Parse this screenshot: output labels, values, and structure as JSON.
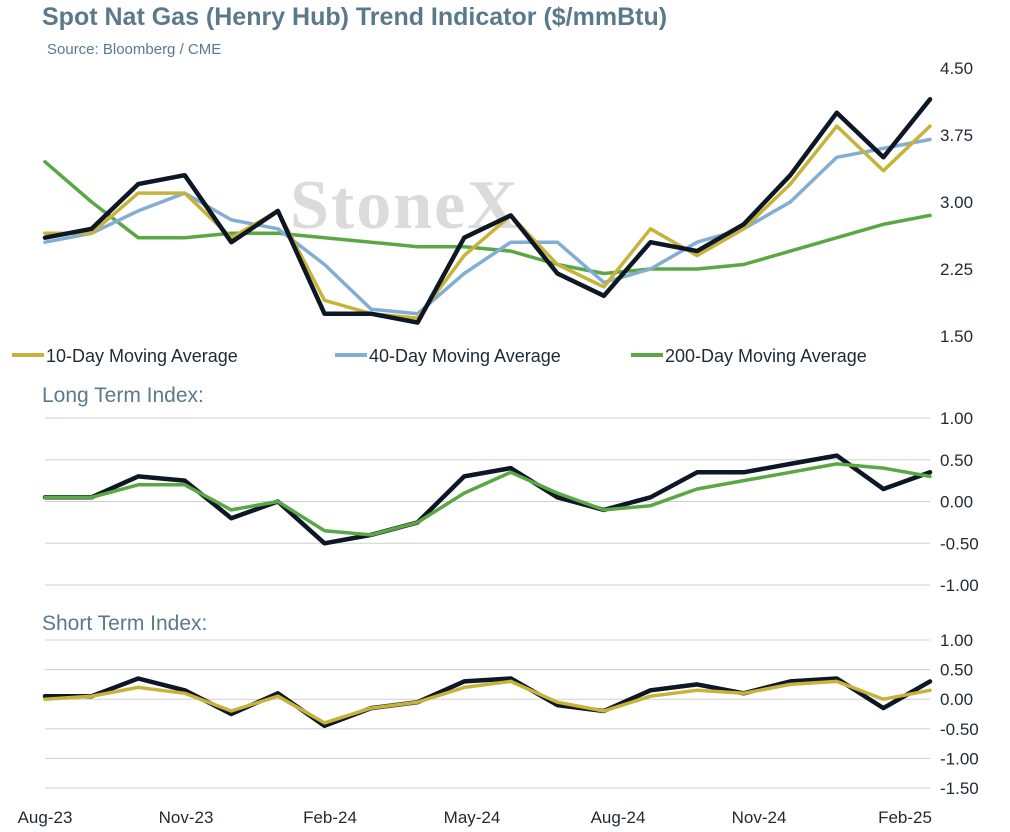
{
  "title": "Spot Nat Gas (Henry Hub) Trend Indicator ($/mmBtu)",
  "subtitle": "Source: Bloomberg / CME",
  "watermark": "StoneX",
  "colors": {
    "price": "#0d1726",
    "ma10": "#c8b33a",
    "ma40": "#82aed3",
    "ma200": "#5aa844",
    "grid": "#d0d0d0",
    "title": "#5a7a8c"
  },
  "x_tick_labels": [
    "Aug-23",
    "Nov-23",
    "Feb-24",
    "May-24",
    "Aug-24",
    "Nov-24",
    "Feb-25"
  ],
  "chart_data": [
    {
      "type": "line",
      "name": "price-panel",
      "title": "Spot Nat Gas (Henry Hub) Trend Indicator ($/mmBtu)",
      "subtitle": "Source: Bloomberg / CME",
      "y_axis_side": "right",
      "ylim": [
        1.5,
        4.5
      ],
      "yticks": [
        "4.50",
        "3.75",
        "3.00",
        "2.25",
        "1.50"
      ],
      "ytick_values": [
        4.5,
        3.75,
        3.0,
        2.25,
        1.5
      ],
      "grid": false,
      "legend_position": "bottom",
      "x": [
        "Aug-23",
        "Sep-23",
        "Oct-23",
        "Nov-23",
        "Dec-23",
        "Jan-24",
        "Feb-24",
        "Mar-24",
        "Apr-24",
        "May-24",
        "Jun-24",
        "Jul-24",
        "Aug-24",
        "Sep-24",
        "Oct-24",
        "Nov-24",
        "Dec-24",
        "Jan-25",
        "Feb-25",
        "Mar-25"
      ],
      "series": [
        {
          "name": "",
          "role": "spot",
          "color": "#0d1726",
          "values": [
            2.6,
            2.7,
            3.2,
            3.3,
            2.55,
            2.9,
            1.75,
            1.75,
            1.65,
            2.6,
            2.85,
            2.2,
            1.95,
            2.55,
            2.45,
            2.75,
            3.3,
            4.0,
            3.5,
            4.15
          ]
        },
        {
          "name": "10-Day Moving Average",
          "role": "ma10",
          "color": "#c8b33a",
          "values": [
            2.65,
            2.65,
            3.1,
            3.1,
            2.6,
            2.9,
            1.9,
            1.75,
            1.7,
            2.4,
            2.85,
            2.3,
            2.05,
            2.7,
            2.4,
            2.7,
            3.2,
            3.85,
            3.35,
            3.85
          ]
        },
        {
          "name": "40-Day Moving Average",
          "role": "ma40",
          "color": "#82aed3",
          "values": [
            2.55,
            2.65,
            2.9,
            3.1,
            2.8,
            2.7,
            2.3,
            1.8,
            1.75,
            2.2,
            2.55,
            2.55,
            2.1,
            2.25,
            2.55,
            2.7,
            3.0,
            3.5,
            3.6,
            3.7
          ]
        },
        {
          "name": "200-Day Moving Average",
          "role": "ma200",
          "color": "#5aa844",
          "values": [
            3.45,
            3.0,
            2.6,
            2.6,
            2.65,
            2.65,
            2.6,
            2.55,
            2.5,
            2.5,
            2.45,
            2.3,
            2.2,
            2.25,
            2.25,
            2.3,
            2.45,
            2.6,
            2.75,
            2.85
          ]
        }
      ]
    },
    {
      "type": "line",
      "name": "long-term-index",
      "title": "Long Term Index:",
      "y_axis_side": "right",
      "ylim": [
        -1.0,
        1.0
      ],
      "yticks": [
        "1.00",
        "0.50",
        "0.00",
        "-0.50",
        "-1.00"
      ],
      "ytick_values": [
        1.0,
        0.5,
        0.0,
        -0.5,
        -1.0
      ],
      "grid": true,
      "x": [
        "Aug-23",
        "Sep-23",
        "Oct-23",
        "Nov-23",
        "Dec-23",
        "Jan-24",
        "Feb-24",
        "Mar-24",
        "Apr-24",
        "May-24",
        "Jun-24",
        "Jul-24",
        "Aug-24",
        "Sep-24",
        "Oct-24",
        "Nov-24",
        "Dec-24",
        "Jan-25",
        "Feb-25",
        "Mar-25"
      ],
      "series": [
        {
          "name": "",
          "color": "#0d1726",
          "values": [
            0.05,
            0.05,
            0.3,
            0.25,
            -0.2,
            0.0,
            -0.5,
            -0.4,
            -0.25,
            0.3,
            0.4,
            0.05,
            -0.1,
            0.05,
            0.35,
            0.35,
            0.45,
            0.55,
            0.15,
            0.35
          ]
        },
        {
          "name": "",
          "color": "#5aa844",
          "values": [
            0.05,
            0.05,
            0.2,
            0.2,
            -0.1,
            0.0,
            -0.35,
            -0.4,
            -0.25,
            0.1,
            0.35,
            0.1,
            -0.1,
            -0.05,
            0.15,
            0.25,
            0.35,
            0.45,
            0.4,
            0.3
          ]
        }
      ]
    },
    {
      "type": "line",
      "name": "short-term-index",
      "title": "Short Term Index:",
      "y_axis_side": "right",
      "ylim": [
        -1.5,
        1.0
      ],
      "yticks": [
        "1.00",
        "0.50",
        "0.00",
        "-0.50",
        "-1.00",
        "-1.50"
      ],
      "ytick_values": [
        1.0,
        0.5,
        0.0,
        -0.5,
        -1.0,
        -1.5
      ],
      "grid": true,
      "x": [
        "Aug-23",
        "Sep-23",
        "Oct-23",
        "Nov-23",
        "Dec-23",
        "Jan-24",
        "Feb-24",
        "Mar-24",
        "Apr-24",
        "May-24",
        "Jun-24",
        "Jul-24",
        "Aug-24",
        "Sep-24",
        "Oct-24",
        "Nov-24",
        "Dec-24",
        "Jan-25",
        "Feb-25",
        "Mar-25"
      ],
      "series": [
        {
          "name": "",
          "color": "#0d1726",
          "values": [
            0.05,
            0.05,
            0.35,
            0.15,
            -0.25,
            0.1,
            -0.45,
            -0.15,
            -0.05,
            0.3,
            0.35,
            -0.1,
            -0.2,
            0.15,
            0.25,
            0.1,
            0.3,
            0.35,
            -0.15,
            0.3
          ]
        },
        {
          "name": "",
          "color": "#c8b33a",
          "values": [
            0.0,
            0.05,
            0.2,
            0.1,
            -0.2,
            0.05,
            -0.4,
            -0.15,
            -0.05,
            0.2,
            0.3,
            -0.05,
            -0.2,
            0.05,
            0.15,
            0.1,
            0.25,
            0.3,
            0.0,
            0.15
          ]
        }
      ]
    }
  ]
}
